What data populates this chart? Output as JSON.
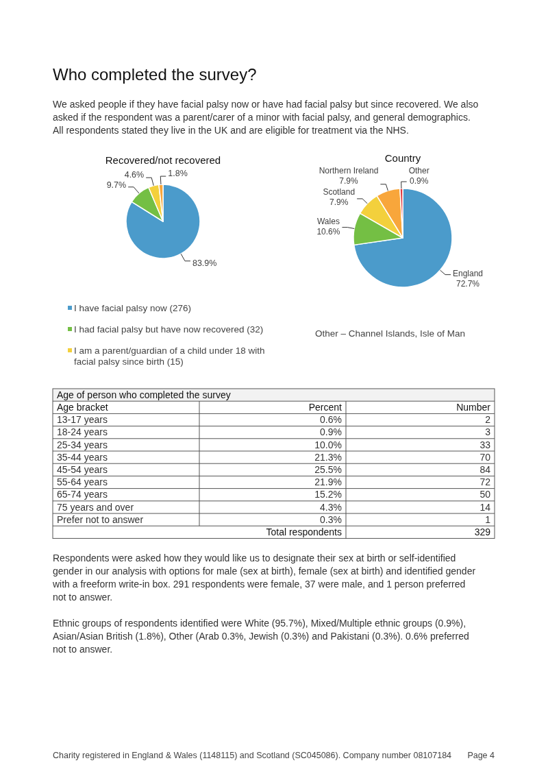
{
  "chart_data": [
    {
      "type": "other",
      "title": "Who completed the survey?",
      "annotations": [
        "We asked people if they have facial palsy now or have had facial palsy but since recovered. We also asked if the respondent was a parent/carer of a minor with facial palsy, and general demographics. All respondents stated they live in the UK and are eligible for treatment via the NHS."
      ]
    },
    {
      "type": "pie",
      "title": "Recovered/not recovered",
      "categories": [
        "I have facial palsy now (276)",
        "I had facial palsy but have now recovered (32)",
        "I am a parent/guardian of a child under 18 with facial palsy since birth (15)",
        null
      ],
      "values": [
        83.9,
        9.7,
        4.6,
        1.8
      ],
      "colors": [
        "#4b9bcb",
        "#74bf44",
        "#f3d03c",
        "#f8a63b"
      ],
      "value_labels": [
        "83.9%",
        "9.7%",
        "4.6%",
        "1.8%"
      ],
      "legend": "bottom"
    },
    {
      "type": "pie",
      "title": "Country",
      "categories": [
        "England",
        "Wales",
        "Scotland",
        "Northern Ireland",
        "Other"
      ],
      "values": [
        72.7,
        10.6,
        7.9,
        7.9,
        0.9
      ],
      "colors": [
        "#4b9bcb",
        "#74bf44",
        "#f3d03c",
        "#f8a63b",
        "#e0393e"
      ],
      "value_labels": [
        "72.7%",
        "10.6%",
        "7.9%",
        "7.9%",
        "0.9%"
      ],
      "annotations": [
        "Other – Channel Islands, Isle of Man"
      ]
    },
    {
      "type": "other",
      "title": "Age of person who completed the survey",
      "xlabel": "Age bracket",
      "categories": [
        "13-17 years",
        "18-24 years",
        "25-34 years",
        "35-44 years",
        "45-54 years",
        "55-64 years",
        "65-74 years",
        "75 years and over",
        "Prefer not to answer"
      ],
      "series": [
        {
          "name": "Percent",
          "values": [
            0.6,
            0.9,
            10.0,
            21.3,
            25.5,
            21.9,
            15.2,
            4.3,
            0.3
          ],
          "value_labels": [
            "0.6%",
            "0.9%",
            "10.0%",
            "21.3%",
            "25.5%",
            "21.9%",
            "15.2%",
            "4.3%",
            "0.3%"
          ]
        },
        {
          "name": "Number",
          "values": [
            2,
            3,
            33,
            70,
            84,
            72,
            50,
            14,
            1
          ],
          "value_labels": [
            "2",
            "3",
            "33",
            "70",
            "84",
            "72",
            "50",
            "14",
            "1"
          ]
        }
      ],
      "annotations": [
        "Total respondents",
        "329"
      ]
    },
    {
      "type": "other",
      "annotations": [
        "Respondents were asked how they would like us to designate their sex at birth or self-identified gender in our analysis with options for male (sex at birth), female (sex at birth) and identified gender with a freeform write-in box. 291 respondents were female, 37 were male, and 1 person preferred not to answer.",
        "Ethnic groups of respondents identified were White (95.7%), Mixed/Multiple ethnic groups (0.9%), Asian/Asian British (1.8%), Other (Arab 0.3%, Jewish (0.3%) and Pakistani (0.3%). 0.6% preferred not to answer."
      ]
    },
    {
      "type": "other",
      "annotations": [
        "Charity registered in England & Wales (1148115) and Scotland (SC045086). Company number 08107184",
        "Page 4"
      ]
    }
  ]
}
